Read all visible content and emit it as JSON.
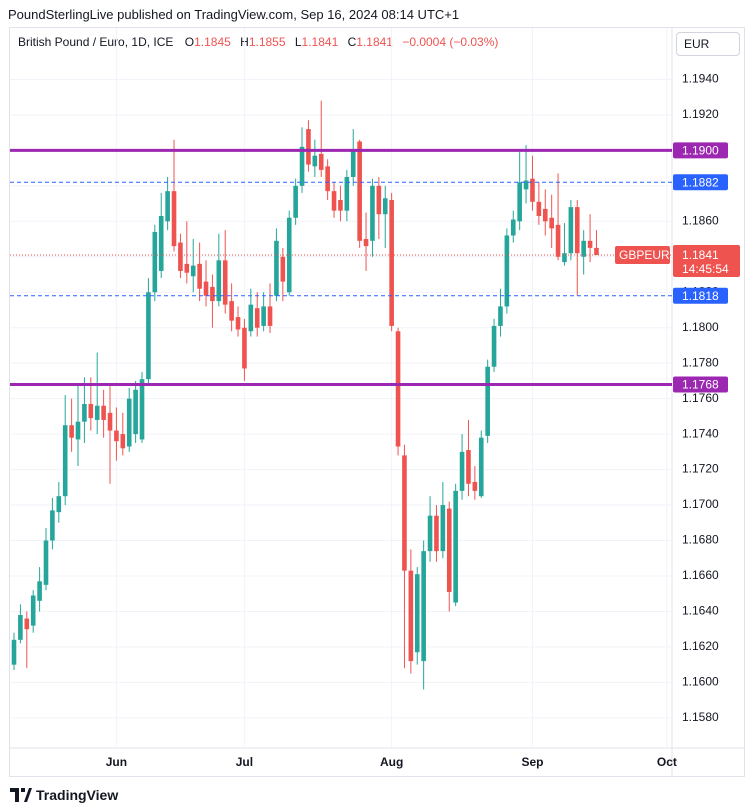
{
  "header": {
    "published": "PoundSterlingLive published on TradingView.com, Sep 16, 2024 08:14 UTC+1"
  },
  "legend": {
    "symbol": "British Pound / Euro, 1D, ICE",
    "o_label": "O",
    "o": "1.1845",
    "h_label": "H",
    "h": "1.1855",
    "l_label": "L",
    "l": "1.1841",
    "c_label": "C",
    "c": "1.1841",
    "change": "−0.0004 (−0.03%)"
  },
  "currency": "EUR",
  "footer": {
    "brand": "TradingView"
  },
  "chart_data": {
    "type": "candlestick",
    "up_color": "#26a69a",
    "down_color": "#ef5350",
    "xlim": [
      -0.625,
      102.8
    ],
    "xticks": [
      {
        "value": 16,
        "label": "Jun"
      },
      {
        "value": 36,
        "label": "Jul"
      },
      {
        "value": 59,
        "label": "Aug"
      },
      {
        "value": 81,
        "label": "Sep"
      },
      {
        "value": 102,
        "label": "Oct"
      }
    ],
    "ylim": [
      1.1563,
      1.1969
    ],
    "yticks": [
      {
        "value": 1.158,
        "label": "1.1580"
      },
      {
        "value": 1.16,
        "label": "1.1600"
      },
      {
        "value": 1.162,
        "label": "1.1620"
      },
      {
        "value": 1.164,
        "label": "1.1640"
      },
      {
        "value": 1.166,
        "label": "1.1660"
      },
      {
        "value": 1.168,
        "label": "1.1680"
      },
      {
        "value": 1.17,
        "label": "1.1700"
      },
      {
        "value": 1.172,
        "label": "1.1720"
      },
      {
        "value": 1.174,
        "label": "1.1740"
      },
      {
        "value": 1.176,
        "label": "1.1760"
      },
      {
        "value": 1.178,
        "label": "1.1780"
      },
      {
        "value": 1.18,
        "label": "1.1800"
      },
      {
        "value": 1.182,
        "label": "1.1820"
      },
      {
        "value": 1.184,
        "label": "1.1840"
      },
      {
        "value": 1.186,
        "label": "1.1860"
      },
      {
        "value": 1.188,
        "label": "1.1880"
      },
      {
        "value": 1.19,
        "label": "1.1900"
      },
      {
        "value": 1.192,
        "label": "1.1920"
      },
      {
        "value": 1.194,
        "label": "1.1940"
      }
    ],
    "grid": true,
    "open": [
      1.161,
      1.1624,
      1.1636,
      1.1632,
      1.1646,
      1.1655,
      1.168,
      1.1696,
      1.1705,
      1.1745,
      1.1737,
      1.1747,
      1.1757,
      1.1748,
      1.1756,
      1.1752,
      1.1742,
      1.174,
      1.1733,
      1.174,
      1.1737,
      1.1771,
      1.182,
      1.1832,
      1.186,
      1.1877,
      1.1848,
      1.1836,
      1.1829,
      1.1836,
      1.1826,
      1.1823,
      1.1815,
      1.1838,
      1.1815,
      1.1806,
      1.18,
      1.1798,
      1.1811,
      1.1801,
      1.1812,
      1.1818,
      1.184,
      1.182,
      1.1862,
      1.188,
      1.1912,
      1.1891,
      1.1898,
      1.1891,
      1.1877,
      1.1872,
      1.1866,
      1.1885,
      1.1905,
      1.185,
      1.1849,
      1.188,
      1.1864,
      1.1872,
      1.1798,
      1.1728,
      1.1663,
      1.1617,
      1.1612,
      1.1674,
      1.1694,
      1.1674,
      1.1698,
      1.1645,
      1.1708,
      1.1731,
      1.1713,
      1.1705,
      1.1739,
      1.1778,
      1.1801,
      1.1812,
      1.1852,
      1.186,
      1.1878,
      1.1884,
      1.1871,
      1.1867,
      1.1862,
      1.1858,
      1.1837,
      1.1842,
      1.1868,
      1.184,
      1.1849,
      1.1845
    ],
    "high": [
      1.1628,
      1.1644,
      1.164,
      1.1652,
      1.1665,
      1.1687,
      1.1704,
      1.1713,
      1.1762,
      1.176,
      1.1768,
      1.1772,
      1.1772,
      1.1786,
      1.1765,
      1.1767,
      1.1755,
      1.1752,
      1.1766,
      1.177,
      1.1775,
      1.1828,
      1.1858,
      1.1876,
      1.1885,
      1.1906,
      1.1853,
      1.186,
      1.185,
      1.1848,
      1.1838,
      1.183,
      1.1853,
      1.1855,
      1.1825,
      1.1812,
      1.1805,
      1.1822,
      1.182,
      1.182,
      1.1825,
      1.1856,
      1.1845,
      1.1866,
      1.1884,
      1.1913,
      1.1917,
      1.1906,
      1.1928,
      1.1895,
      1.1882,
      1.188,
      1.1889,
      1.1912,
      1.1906,
      1.1865,
      1.1884,
      1.1885,
      1.188,
      1.1876,
      1.18,
      1.1734,
      1.1675,
      1.1665,
      1.168,
      1.1705,
      1.17,
      1.1713,
      1.1702,
      1.1712,
      1.174,
      1.1748,
      1.1722,
      1.1742,
      1.1782,
      1.1805,
      1.1822,
      1.1856,
      1.1866,
      1.1899,
      1.1903,
      1.1897,
      1.1882,
      1.1878,
      1.1875,
      1.1887,
      1.1859,
      1.1872,
      1.1872,
      1.1855,
      1.1864,
      1.1855
    ],
    "low": [
      1.1607,
      1.1622,
      1.1608,
      1.1628,
      1.164,
      1.1652,
      1.1675,
      1.169,
      1.17,
      1.173,
      1.1722,
      1.1735,
      1.1742,
      1.174,
      1.1738,
      1.1712,
      1.1725,
      1.1728,
      1.173,
      1.1735,
      1.1735,
      1.1768,
      1.1815,
      1.1828,
      1.1855,
      1.1843,
      1.1828,
      1.1825,
      1.182,
      1.1815,
      1.1812,
      1.18,
      1.1812,
      1.1808,
      1.1798,
      1.1795,
      1.177,
      1.1795,
      1.1795,
      1.1798,
      1.1797,
      1.1815,
      1.1815,
      1.1818,
      1.1858,
      1.1876,
      1.1888,
      1.1885,
      1.1885,
      1.1872,
      1.1862,
      1.186,
      1.186,
      1.188,
      1.1845,
      1.1832,
      1.184,
      1.185,
      1.1845,
      1.1798,
      1.1728,
      1.1608,
      1.1605,
      1.161,
      1.1596,
      1.1668,
      1.1668,
      1.167,
      1.164,
      1.1643,
      1.1703,
      1.1705,
      1.1703,
      1.1704,
      1.1735,
      1.1775,
      1.1795,
      1.1808,
      1.1848,
      1.1855,
      1.187,
      1.1866,
      1.1858,
      1.1852,
      1.1845,
      1.1838,
      1.1835,
      1.1838,
      1.1818,
      1.183,
      1.1837,
      1.1841
    ],
    "close": [
      1.1624,
      1.1638,
      1.163,
      1.1649,
      1.1657,
      1.168,
      1.1697,
      1.1705,
      1.1745,
      1.1738,
      1.1747,
      1.1757,
      1.1749,
      1.1756,
      1.1748,
      1.1742,
      1.1736,
      1.1732,
      1.176,
      1.1765,
      1.1771,
      1.182,
      1.1854,
      1.1863,
      1.1877,
      1.1846,
      1.1832,
      1.1831,
      1.1835,
      1.1822,
      1.1818,
      1.1815,
      1.1838,
      1.1813,
      1.1804,
      1.1799,
      1.1777,
      1.1813,
      1.18,
      1.1812,
      1.1801,
      1.1849,
      1.1826,
      1.1862,
      1.188,
      1.1902,
      1.1892,
      1.1897,
      1.1889,
      1.1877,
      1.1866,
      1.1866,
      1.1885,
      1.19,
      1.1849,
      1.1846,
      1.188,
      1.1864,
      1.1873,
      1.1801,
      1.1733,
      1.1663,
      1.1612,
      1.1661,
      1.1674,
      1.1694,
      1.1674,
      1.17,
      1.1651,
      1.1708,
      1.173,
      1.1712,
      1.1708,
      1.1738,
      1.1778,
      1.1801,
      1.1812,
      1.1852,
      1.1861,
      1.1882,
      1.1883,
      1.1871,
      1.1863,
      1.186,
      1.1856,
      1.184,
      1.1842,
      1.1868,
      1.1842,
      1.1849,
      1.1845,
      1.1841
    ],
    "hlines": [
      {
        "value": 1.19,
        "label": "1.1900",
        "color": "#9c27b0",
        "style": "solid"
      },
      {
        "value": 1.1882,
        "label": "1.1882",
        "color": "#2962ff",
        "style": "dashed"
      },
      {
        "value": 1.1818,
        "label": "1.1818",
        "color": "#2962ff",
        "style": "dashed"
      },
      {
        "value": 1.1768,
        "label": "1.1768",
        "color": "#9c27b0",
        "style": "solid"
      }
    ],
    "last": {
      "value": 1.1841,
      "label": "1.1841",
      "symbol": "GBPEUR",
      "countdown": "14:45:54",
      "color": "#ef5350"
    }
  }
}
